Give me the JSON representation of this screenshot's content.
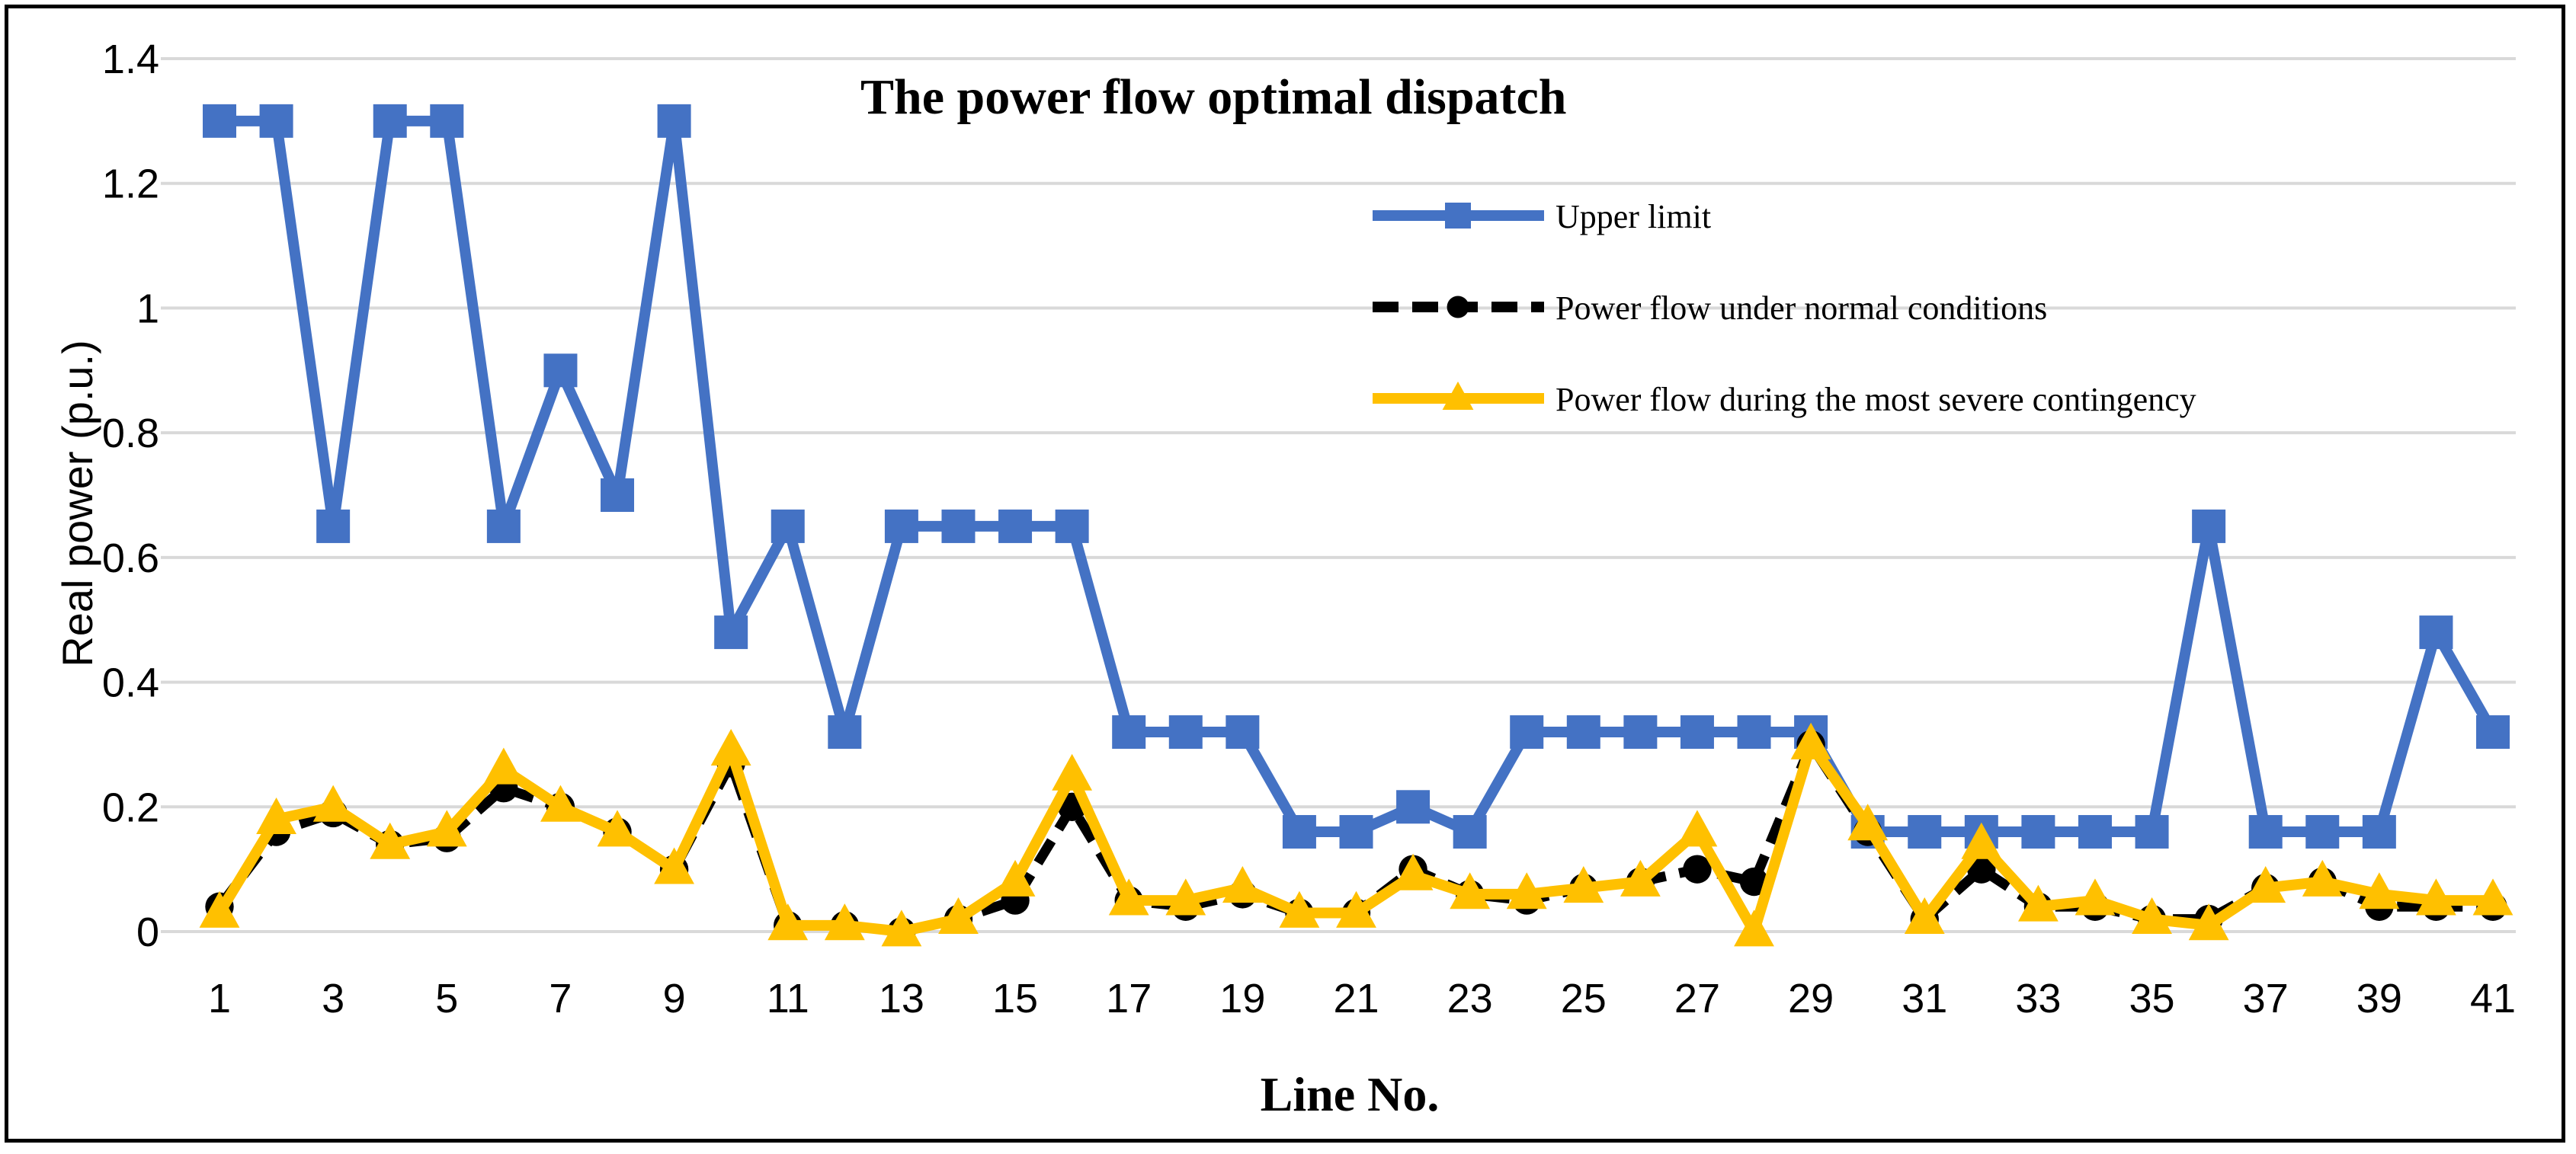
{
  "chart_data": {
    "type": "line",
    "title": "The power flow optimal dispatch",
    "xlabel": "Line No.",
    "ylabel": "Real power (p.u.)",
    "ylim": [
      0,
      1.4
    ],
    "yticks": [
      "0",
      "0.2",
      "0.4",
      "0.6",
      "0.8",
      "1",
      "1.2",
      "1.4"
    ],
    "xticks": [
      "1",
      "3",
      "5",
      "7",
      "9",
      "11",
      "13",
      "15",
      "17",
      "19",
      "21",
      "23",
      "25",
      "27",
      "29",
      "31",
      "33",
      "35",
      "37",
      "39",
      "41"
    ],
    "grid": true,
    "legend_position": "top-right",
    "x": [
      1,
      2,
      3,
      4,
      5,
      6,
      7,
      8,
      9,
      10,
      11,
      12,
      13,
      14,
      15,
      16,
      17,
      18,
      19,
      20,
      21,
      22,
      23,
      24,
      25,
      26,
      27,
      28,
      29,
      30,
      31,
      32,
      33,
      34,
      35,
      36,
      37,
      38,
      39,
      40,
      41
    ],
    "series": [
      {
        "name": "Upper limit",
        "color": "#4472C4",
        "marker": "square",
        "dash": "solid",
        "values": [
          1.3,
          1.3,
          0.65,
          1.3,
          1.3,
          0.65,
          0.9,
          0.7,
          1.3,
          0.48,
          0.65,
          0.32,
          0.65,
          0.65,
          0.65,
          0.65,
          0.32,
          0.32,
          0.32,
          0.16,
          0.16,
          0.2,
          0.16,
          0.32,
          0.32,
          0.32,
          0.32,
          0.32,
          0.32,
          0.16,
          0.16,
          0.16,
          0.16,
          0.16,
          0.16,
          0.65,
          0.16,
          0.16,
          0.16,
          0.48,
          0.32
        ]
      },
      {
        "name": "Power flow under normal conditions",
        "color": "#000000",
        "marker": "circle",
        "dash": "dashed",
        "values": [
          0.04,
          0.16,
          0.19,
          0.14,
          0.15,
          0.23,
          0.2,
          0.16,
          0.1,
          0.27,
          0.01,
          0.01,
          0.0,
          0.02,
          0.05,
          0.2,
          0.05,
          0.04,
          0.06,
          0.03,
          0.03,
          0.1,
          0.06,
          0.05,
          0.07,
          0.08,
          0.1,
          0.08,
          0.3,
          0.16,
          0.02,
          0.1,
          0.04,
          0.04,
          0.02,
          0.02,
          0.07,
          0.08,
          0.04,
          0.04,
          0.04
        ]
      },
      {
        "name": "Power flow during the most severe contingency",
        "color": "#FFC000",
        "marker": "triangle",
        "dash": "solid",
        "values": [
          0.03,
          0.18,
          0.2,
          0.14,
          0.16,
          0.26,
          0.2,
          0.16,
          0.1,
          0.29,
          0.01,
          0.01,
          0.0,
          0.02,
          0.08,
          0.25,
          0.05,
          0.05,
          0.07,
          0.03,
          0.03,
          0.09,
          0.06,
          0.06,
          0.07,
          0.08,
          0.16,
          0.0,
          0.3,
          0.17,
          0.02,
          0.14,
          0.04,
          0.05,
          0.02,
          0.01,
          0.07,
          0.08,
          0.06,
          0.05,
          0.05
        ]
      }
    ]
  }
}
